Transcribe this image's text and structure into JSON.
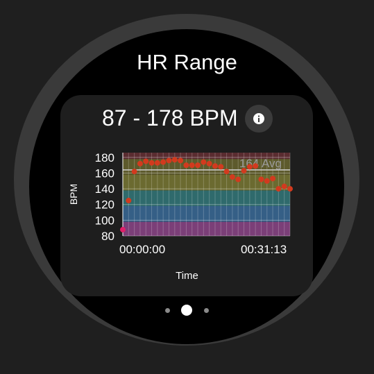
{
  "title": "HR Range",
  "range_text": "87 - 178 BPM",
  "info_icon": "info-icon",
  "x_start_label": "00:00:00",
  "x_end_label": "00:31:13",
  "chart_data": {
    "type": "scatter",
    "ylabel": "BPM",
    "xlabel": "Time",
    "ylim": [
      80,
      186
    ],
    "yticks": [
      80,
      100,
      120,
      140,
      160,
      180
    ],
    "avg_label": "164 Avg",
    "avg_value": 164,
    "zones": [
      {
        "from": 80,
        "to": 98,
        "color": "#7b3f78"
      },
      {
        "from": 98,
        "to": 118,
        "color": "#355f86"
      },
      {
        "from": 118,
        "to": 138,
        "color": "#2f6a6c"
      },
      {
        "from": 138,
        "to": 158,
        "color": "#6b6a30"
      },
      {
        "from": 158,
        "to": 178,
        "color": "#5d5a2c"
      },
      {
        "from": 178,
        "to": 186,
        "color": "#5a2c30"
      }
    ],
    "series": [
      {
        "values": [
          88,
          125,
          162,
          172,
          175,
          173,
          173,
          174,
          176,
          177,
          176,
          170,
          170,
          170,
          174,
          172,
          169,
          168,
          162,
          155,
          152,
          163,
          168,
          169,
          152,
          150,
          153,
          140,
          143,
          140
        ]
      }
    ]
  },
  "pager": {
    "count": 3,
    "active": 1
  }
}
